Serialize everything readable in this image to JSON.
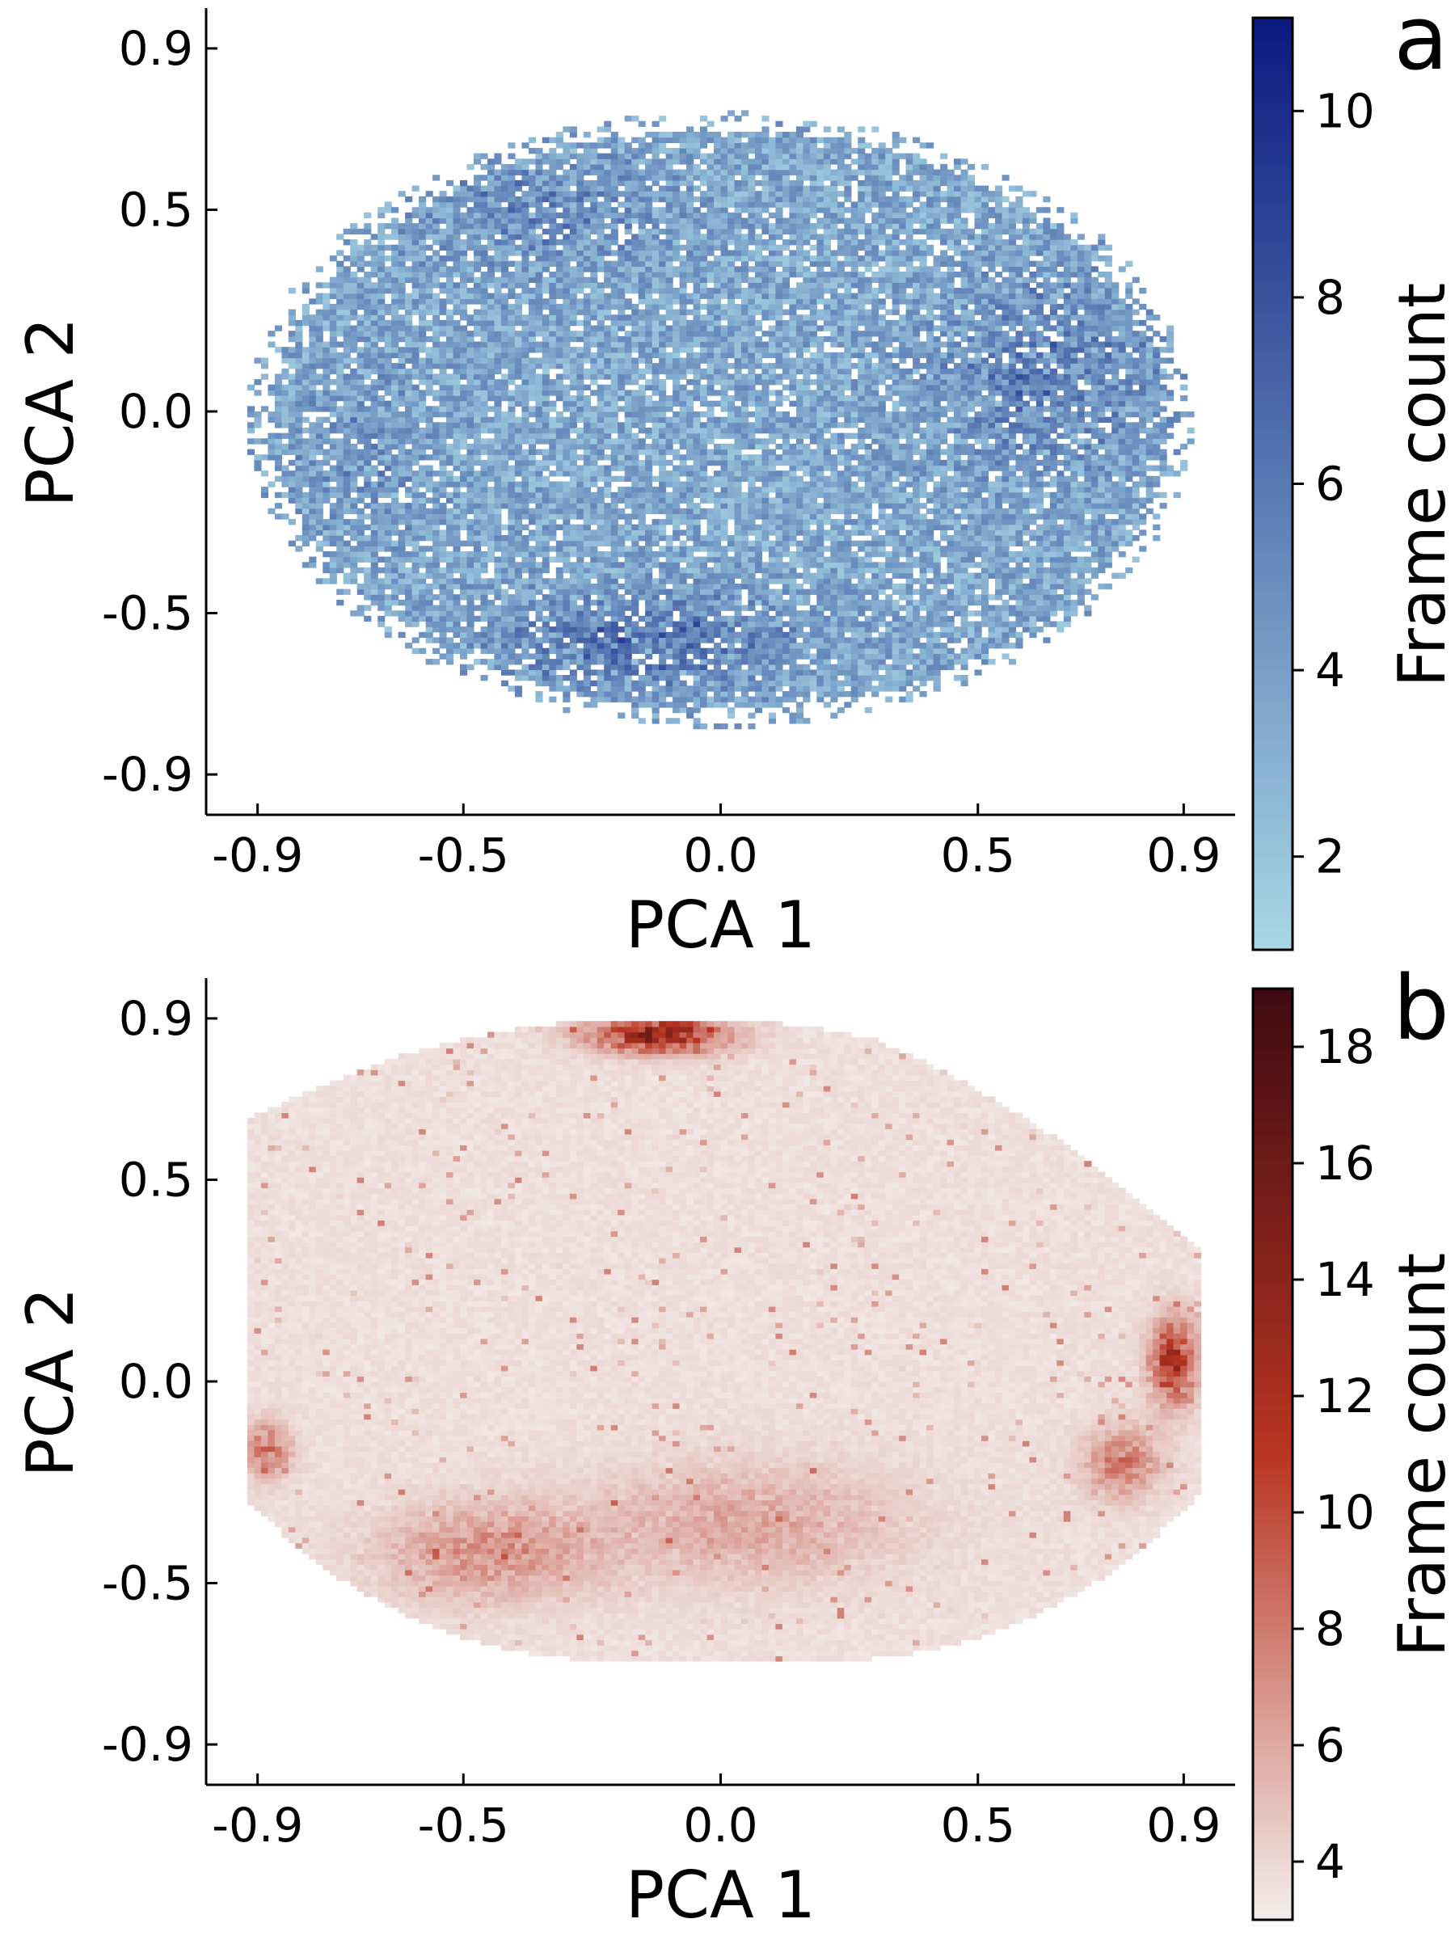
{
  "chart_data": [
    {
      "type": "heatmap",
      "panel_label": "a",
      "xlabel": "PCA 1",
      "ylabel": "PCA 2",
      "xlim": [
        -1.0,
        1.0
      ],
      "ylim": [
        -1.0,
        1.0
      ],
      "x_ticks": [
        -0.9,
        -0.5,
        0.0,
        0.5,
        0.9
      ],
      "x_tick_labels": [
        "-0.9",
        "-0.5",
        "0.0",
        "0.5",
        "0.9"
      ],
      "y_ticks": [
        -0.9,
        -0.5,
        0.0,
        0.5,
        0.9
      ],
      "y_tick_labels": [
        "-0.9",
        "-0.5",
        "0.0",
        "0.5",
        "0.9"
      ],
      "colorbar": {
        "label": "Frame count",
        "min": 1,
        "max": 11,
        "ticks": [
          2,
          4,
          6,
          8,
          10
        ],
        "tick_labels": [
          "2",
          "4",
          "6",
          "8",
          "10"
        ],
        "color_low": "#a8d8e6",
        "color_high": "#0a1a80"
      },
      "density": {
        "shape": "ellipse",
        "center": [
          0.0,
          -0.02
        ],
        "radii": [
          0.87,
          0.72
        ],
        "hotspots": [
          {
            "x": -0.15,
            "y": -0.57,
            "sx": 0.18,
            "sy": 0.08,
            "w": 1.0
          },
          {
            "x": 0.65,
            "y": 0.1,
            "sx": 0.14,
            "sy": 0.16,
            "w": 0.75
          },
          {
            "x": -0.35,
            "y": 0.5,
            "sx": 0.16,
            "sy": 0.1,
            "w": 0.55
          },
          {
            "x": -0.7,
            "y": -0.1,
            "sx": 0.1,
            "sy": 0.14,
            "w": 0.35
          }
        ]
      },
      "grid": false
    },
    {
      "type": "heatmap",
      "panel_label": "b",
      "xlabel": "PCA 1",
      "ylabel": "PCA 2",
      "xlim": [
        -1.0,
        1.0
      ],
      "ylim": [
        -1.0,
        1.0
      ],
      "x_ticks": [
        -0.9,
        -0.5,
        0.0,
        0.5,
        0.9
      ],
      "x_tick_labels": [
        "-0.9",
        "-0.5",
        "0.0",
        "0.5",
        "0.9"
      ],
      "y_ticks": [
        -0.9,
        -0.5,
        0.0,
        0.5,
        0.9
      ],
      "y_tick_labels": [
        "-0.9",
        "-0.5",
        "0.0",
        "0.5",
        "0.9"
      ],
      "colorbar": {
        "label": "Frame count",
        "min": 3,
        "max": 19,
        "ticks": [
          4,
          6,
          8,
          10,
          12,
          14,
          16,
          18
        ],
        "tick_labels": [
          "4",
          "6",
          "8",
          "10",
          "12",
          "14",
          "16",
          "18"
        ],
        "color_low": "#f3eeec",
        "color_mid": "#b93522",
        "color_high": "#3f0a12"
      },
      "density": {
        "shape": "blob",
        "hotspots": [
          {
            "x": -0.12,
            "y": 0.86,
            "sx": 0.09,
            "sy": 0.03,
            "w": 1.0
          },
          {
            "x": 0.88,
            "y": 0.05,
            "sx": 0.03,
            "sy": 0.07,
            "w": 0.9
          },
          {
            "x": 0.78,
            "y": -0.2,
            "sx": 0.05,
            "sy": 0.06,
            "w": 0.45
          },
          {
            "x": -0.88,
            "y": -0.17,
            "sx": 0.03,
            "sy": 0.05,
            "w": 0.45
          },
          {
            "x": -0.45,
            "y": -0.42,
            "sx": 0.14,
            "sy": 0.08,
            "w": 0.35
          },
          {
            "x": 0.05,
            "y": -0.35,
            "sx": 0.2,
            "sy": 0.1,
            "w": 0.25
          }
        ]
      },
      "grid": false
    }
  ]
}
